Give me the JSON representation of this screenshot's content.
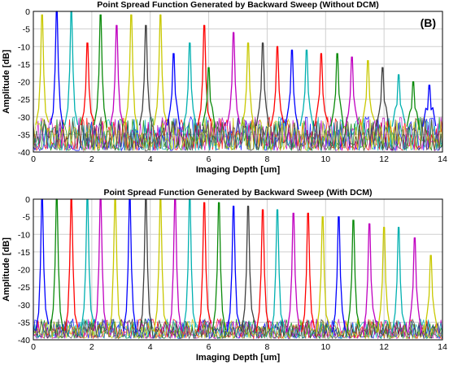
{
  "chart_data": [
    {
      "type": "line",
      "title": "Point Spread Function Generated by Backward Sweep (Without DCM)",
      "xlabel": "Imaging Depth [um]",
      "ylabel": "Amplitude [dB]",
      "annotation": "(B)",
      "xlim": [
        0,
        14
      ],
      "ylim": [
        -40,
        0
      ],
      "xticks": [
        0,
        2,
        4,
        6,
        8,
        10,
        12,
        14
      ],
      "yticks": [
        0,
        -5,
        -10,
        -15,
        -20,
        -25,
        -30,
        -35,
        -40
      ],
      "grid": true,
      "noise_floor": {
        "low": -40,
        "high": -30
      },
      "series": [
        {
          "peak_x": 0.3,
          "peak_y": -2,
          "color": "#c8c800"
        },
        {
          "peak_x": 0.8,
          "peak_y": 0,
          "color": "#0000ff"
        },
        {
          "peak_x": 1.3,
          "peak_y": 0,
          "color": "#00b0b0"
        },
        {
          "peak_x": 1.85,
          "peak_y": -10,
          "color": "#ff0000"
        },
        {
          "peak_x": 2.3,
          "peak_y": -2,
          "color": "#0a8a0a"
        },
        {
          "peak_x": 2.85,
          "peak_y": -5,
          "color": "#c000c0"
        },
        {
          "peak_x": 3.35,
          "peak_y": -2,
          "color": "#c8c800"
        },
        {
          "peak_x": 3.85,
          "peak_y": -5,
          "color": "#404040"
        },
        {
          "peak_x": 4.35,
          "peak_y": -2,
          "color": "#c8c800"
        },
        {
          "peak_x": 4.8,
          "peak_y": -13,
          "color": "#0000ff"
        },
        {
          "peak_x": 5.35,
          "peak_y": -10,
          "color": "#00b0b0"
        },
        {
          "peak_x": 5.85,
          "peak_y": -5,
          "color": "#ff0000"
        },
        {
          "peak_x": 6.0,
          "peak_y": -17,
          "color": "#0a8a0a"
        },
        {
          "peak_x": 6.85,
          "peak_y": -7,
          "color": "#c000c0"
        },
        {
          "peak_x": 7.35,
          "peak_y": -10,
          "color": "#c8c800"
        },
        {
          "peak_x": 7.85,
          "peak_y": -10,
          "color": "#404040"
        },
        {
          "peak_x": 8.35,
          "peak_y": -11,
          "color": "#ff0000"
        },
        {
          "peak_x": 8.85,
          "peak_y": -12,
          "color": "#0000ff"
        },
        {
          "peak_x": 9.35,
          "peak_y": -12,
          "color": "#00b0b0"
        },
        {
          "peak_x": 9.85,
          "peak_y": -13,
          "color": "#ff0000"
        },
        {
          "peak_x": 10.4,
          "peak_y": -13,
          "color": "#0a8a0a"
        },
        {
          "peak_x": 10.9,
          "peak_y": -14,
          "color": "#c000c0"
        },
        {
          "peak_x": 11.45,
          "peak_y": -15,
          "color": "#c8c800"
        },
        {
          "peak_x": 11.95,
          "peak_y": -17,
          "color": "#404040"
        },
        {
          "peak_x": 12.5,
          "peak_y": -19,
          "color": "#00b0b0"
        },
        {
          "peak_x": 13.0,
          "peak_y": -21,
          "color": "#0a8a0a"
        },
        {
          "peak_x": 13.55,
          "peak_y": -22,
          "color": "#0000ff"
        }
      ]
    },
    {
      "type": "line",
      "title": "Point Spread Function Generated by Backward Sweep (With DCM)",
      "xlabel": "Imaging Depth [um]",
      "ylabel": "Amplitude [dB]",
      "xlim": [
        0,
        14
      ],
      "ylim": [
        -40,
        0
      ],
      "xticks": [
        0,
        2,
        4,
        6,
        8,
        10,
        12,
        14
      ],
      "yticks": [
        0,
        -5,
        -10,
        -15,
        -20,
        -25,
        -30,
        -35,
        -40
      ],
      "grid": true,
      "noise_floor": {
        "low": -40,
        "high": -34
      },
      "series": [
        {
          "peak_x": 0.3,
          "peak_y": -1,
          "color": "#0000ff"
        },
        {
          "peak_x": 0.8,
          "peak_y": 0,
          "color": "#0a8a0a"
        },
        {
          "peak_x": 1.3,
          "peak_y": 0,
          "color": "#ff0000"
        },
        {
          "peak_x": 1.85,
          "peak_y": -1,
          "color": "#00b0b0"
        },
        {
          "peak_x": 2.3,
          "peak_y": 0,
          "color": "#c000c0"
        },
        {
          "peak_x": 2.8,
          "peak_y": 0,
          "color": "#c8c800"
        },
        {
          "peak_x": 3.3,
          "peak_y": -1,
          "color": "#0000ff"
        },
        {
          "peak_x": 3.85,
          "peak_y": -1,
          "color": "#404040"
        },
        {
          "peak_x": 4.35,
          "peak_y": -1,
          "color": "#c8c800"
        },
        {
          "peak_x": 4.85,
          "peak_y": -1,
          "color": "#c000c0"
        },
        {
          "peak_x": 5.35,
          "peak_y": -1,
          "color": "#00b0b0"
        },
        {
          "peak_x": 5.85,
          "peak_y": -2,
          "color": "#ff0000"
        },
        {
          "peak_x": 6.35,
          "peak_y": -2,
          "color": "#0a8a0a"
        },
        {
          "peak_x": 6.85,
          "peak_y": -3,
          "color": "#0000ff"
        },
        {
          "peak_x": 7.35,
          "peak_y": -3,
          "color": "#404040"
        },
        {
          "peak_x": 7.85,
          "peak_y": -4,
          "color": "#ff0000"
        },
        {
          "peak_x": 8.35,
          "peak_y": -4,
          "color": "#00b0b0"
        },
        {
          "peak_x": 8.9,
          "peak_y": -5,
          "color": "#c000c0"
        },
        {
          "peak_x": 9.4,
          "peak_y": -5,
          "color": "#ff0000"
        },
        {
          "peak_x": 9.9,
          "peak_y": -6,
          "color": "#c8c800"
        },
        {
          "peak_x": 10.45,
          "peak_y": -6,
          "color": "#0000ff"
        },
        {
          "peak_x": 10.95,
          "peak_y": -7,
          "color": "#0a8a0a"
        },
        {
          "peak_x": 11.5,
          "peak_y": -8,
          "color": "#c000c0"
        },
        {
          "peak_x": 12.0,
          "peak_y": -9,
          "color": "#c8c800"
        },
        {
          "peak_x": 12.5,
          "peak_y": -9,
          "color": "#00b0b0"
        },
        {
          "peak_x": 13.05,
          "peak_y": -12,
          "color": "#c000c0"
        },
        {
          "peak_x": 13.6,
          "peak_y": -17,
          "color": "#c8c800"
        }
      ]
    }
  ]
}
